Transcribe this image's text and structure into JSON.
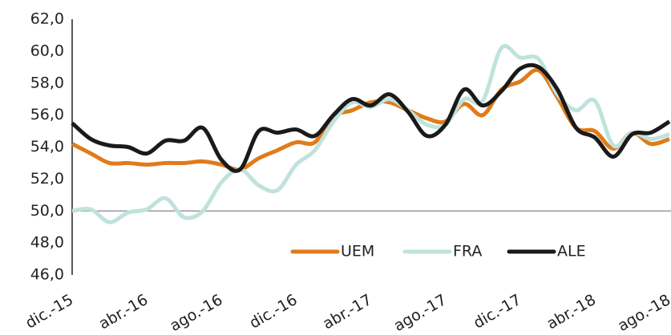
{
  "chart_data": {
    "type": "line",
    "categories": [
      "dic.-15",
      null,
      null,
      null,
      "abr.-16",
      null,
      null,
      null,
      "ago.-16",
      null,
      null,
      null,
      "dic.-16",
      null,
      null,
      null,
      "abr.-17",
      null,
      null,
      null,
      "ago.-17",
      null,
      null,
      null,
      "dic.-17",
      null,
      null,
      null,
      "abr.-18",
      null,
      null,
      null,
      "ago.-18"
    ],
    "series": [
      {
        "name": "UEM",
        "color": "#e07b1a",
        "values": [
          54.2,
          53.6,
          53.0,
          53.0,
          52.9,
          53.0,
          53.0,
          53.1,
          52.9,
          52.6,
          53.3,
          53.8,
          54.3,
          54.3,
          55.9,
          56.3,
          56.8,
          56.8,
          56.3,
          55.8,
          55.6,
          56.7,
          56.0,
          57.6,
          58.1,
          58.8,
          57.1,
          55.2,
          55.0,
          53.9,
          54.9,
          54.2,
          54.5
        ]
      },
      {
        "name": "FRA",
        "color": "#bfe3dc",
        "values": [
          50.0,
          50.1,
          49.3,
          49.9,
          50.1,
          50.8,
          49.6,
          50.0,
          51.8,
          52.6,
          51.6,
          51.3,
          52.9,
          53.8,
          55.6,
          56.8,
          56.5,
          57.0,
          56.3,
          55.4,
          55.4,
          57.0,
          56.9,
          60.2,
          59.6,
          59.5,
          57.3,
          56.3,
          56.9,
          54.1,
          54.9,
          54.5,
          54.8
        ]
      },
      {
        "name": "ALE",
        "color": "#1a1a1a",
        "values": [
          55.5,
          54.5,
          54.1,
          54.0,
          53.6,
          54.4,
          54.4,
          55.2,
          53.2,
          52.6,
          55.0,
          54.9,
          55.1,
          54.7,
          56.0,
          57.0,
          56.6,
          57.3,
          56.2,
          54.7,
          55.4,
          57.6,
          56.6,
          57.5,
          58.9,
          59.0,
          57.6,
          55.2,
          54.6,
          53.4,
          54.8,
          54.9,
          55.6
        ]
      }
    ],
    "ylim": [
      46,
      62
    ],
    "yticks": [
      {
        "value": 46,
        "label": "46,0"
      },
      {
        "value": 48,
        "label": "48,0"
      },
      {
        "value": 50,
        "label": "50,0"
      },
      {
        "value": 52,
        "label": "52,0"
      },
      {
        "value": 54,
        "label": "54,0"
      },
      {
        "value": 56,
        "label": "56,0"
      },
      {
        "value": 58,
        "label": "58,0"
      },
      {
        "value": 60,
        "label": "60,0"
      },
      {
        "value": 62,
        "label": "62,0"
      }
    ],
    "xaxis_crosses": 50,
    "legend": "bottom-right"
  }
}
